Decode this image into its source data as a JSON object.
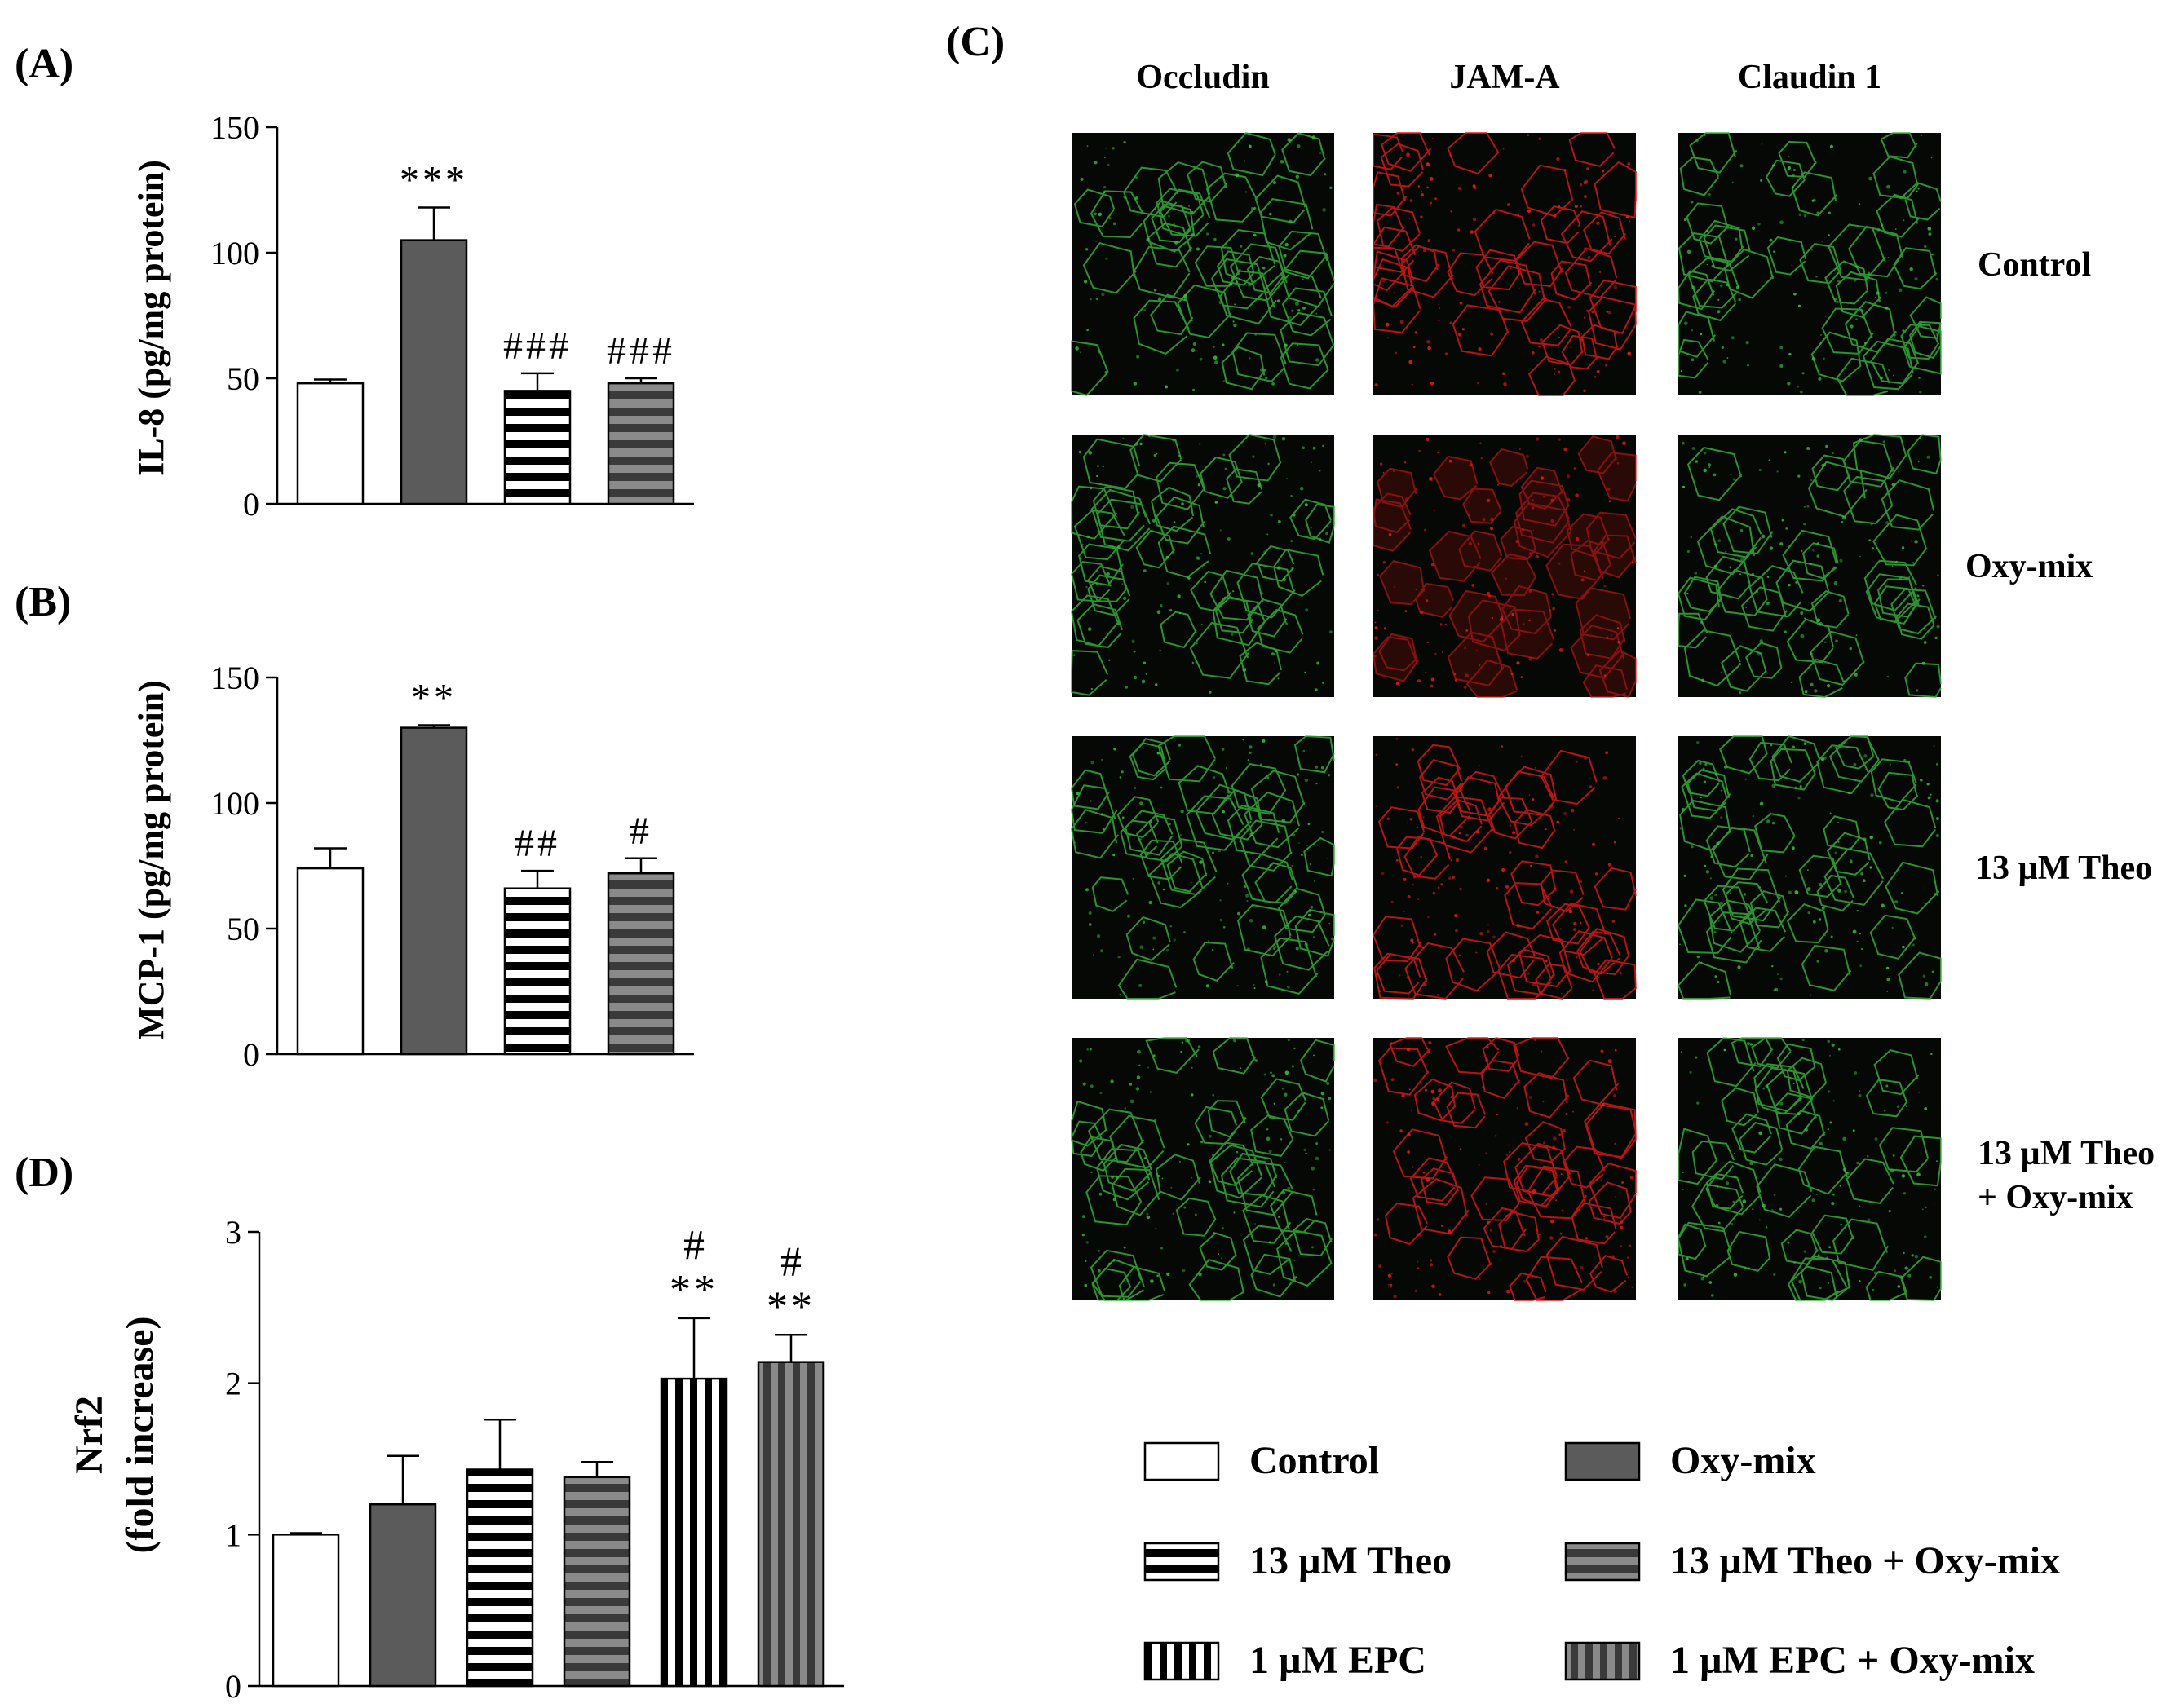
{
  "panels": {
    "A": {
      "label": "(A)"
    },
    "B": {
      "label": "(B)"
    },
    "C": {
      "label": "(C)"
    },
    "D": {
      "label": "(D)"
    }
  },
  "colors": {
    "dark": "#5b5b5b",
    "axis": "#000000",
    "green": "#39c13f",
    "red": "#f01a1a",
    "bg": "#0d160c"
  },
  "chart_data": [
    {
      "id": "A",
      "type": "bar",
      "ylabel": "IL-8 (pg/mg protein)",
      "ylim": [
        0,
        150
      ],
      "yticks": [
        0,
        50,
        100,
        150
      ],
      "categories": [
        "Control",
        "Oxy-mix",
        "13 µM Theo",
        "13 µM Theo + Oxy-mix"
      ],
      "patterns": [
        "white",
        "dark",
        "hstripe-white",
        "hstripe-dark"
      ],
      "values": [
        48,
        105,
        45,
        48
      ],
      "errors": [
        1.5,
        13,
        7,
        2
      ],
      "annotations": [
        [
          "",
          ""
        ],
        [
          "***",
          ""
        ],
        [
          "###",
          ""
        ],
        [
          "###",
          ""
        ]
      ]
    },
    {
      "id": "B",
      "type": "bar",
      "ylabel": "MCP-1 (pg/mg protein)",
      "ylim": [
        0,
        150
      ],
      "yticks": [
        0,
        50,
        100,
        150
      ],
      "categories": [
        "Control",
        "Oxy-mix",
        "13 µM Theo",
        "13 µM Theo + Oxy-mix"
      ],
      "patterns": [
        "white",
        "dark",
        "hstripe-white",
        "hstripe-dark"
      ],
      "values": [
        74,
        130,
        66,
        72
      ],
      "errors": [
        8,
        1,
        7,
        6
      ],
      "annotations": [
        [
          "",
          ""
        ],
        [
          "**",
          ""
        ],
        [
          "##",
          ""
        ],
        [
          "#",
          ""
        ]
      ]
    },
    {
      "id": "D",
      "type": "bar",
      "ylabel": [
        "Nrf2",
        "(fold increase)"
      ],
      "ylim": [
        0,
        3
      ],
      "yticks": [
        0,
        1,
        2,
        3
      ],
      "categories": [
        "Control",
        "Oxy-mix",
        "13 µM Theo",
        "13 µM Theo + Oxy-mix",
        "1 µM EPC",
        "1 µM EPC + Oxy-mix"
      ],
      "patterns": [
        "white",
        "dark",
        "hstripe-white",
        "hstripe-dark",
        "vstripe-white",
        "vstripe-dark"
      ],
      "values": [
        1.0,
        1.2,
        1.43,
        1.38,
        2.03,
        2.14
      ],
      "errors": [
        0.01,
        0.32,
        0.33,
        0.1,
        0.4,
        0.18
      ],
      "annotations": [
        [
          "",
          ""
        ],
        [
          "",
          ""
        ],
        [
          "",
          ""
        ],
        [
          "",
          ""
        ],
        [
          "**",
          "#"
        ],
        [
          "**",
          "#"
        ]
      ]
    }
  ],
  "micrographs": {
    "columns": [
      "Occludin",
      "JAM-A",
      "Claudin  1"
    ],
    "rows": [
      "Control",
      "Oxy-mix",
      "13 µM Theo",
      [
        "13 µM Theo",
        "+ Oxy-mix"
      ]
    ]
  },
  "legend": {
    "items": [
      {
        "label": "Control",
        "pattern": "white"
      },
      {
        "label": "Oxy-mix",
        "pattern": "dark"
      },
      {
        "label": "13 µM Theo",
        "pattern": "hstripe-white"
      },
      {
        "label": "13 µM Theo + Oxy-mix",
        "pattern": "hstripe-dark"
      },
      {
        "label": "1 µM EPC",
        "pattern": "vstripe-white"
      },
      {
        "label": "1 µM EPC + Oxy-mix",
        "pattern": "vstripe-dark"
      }
    ]
  }
}
